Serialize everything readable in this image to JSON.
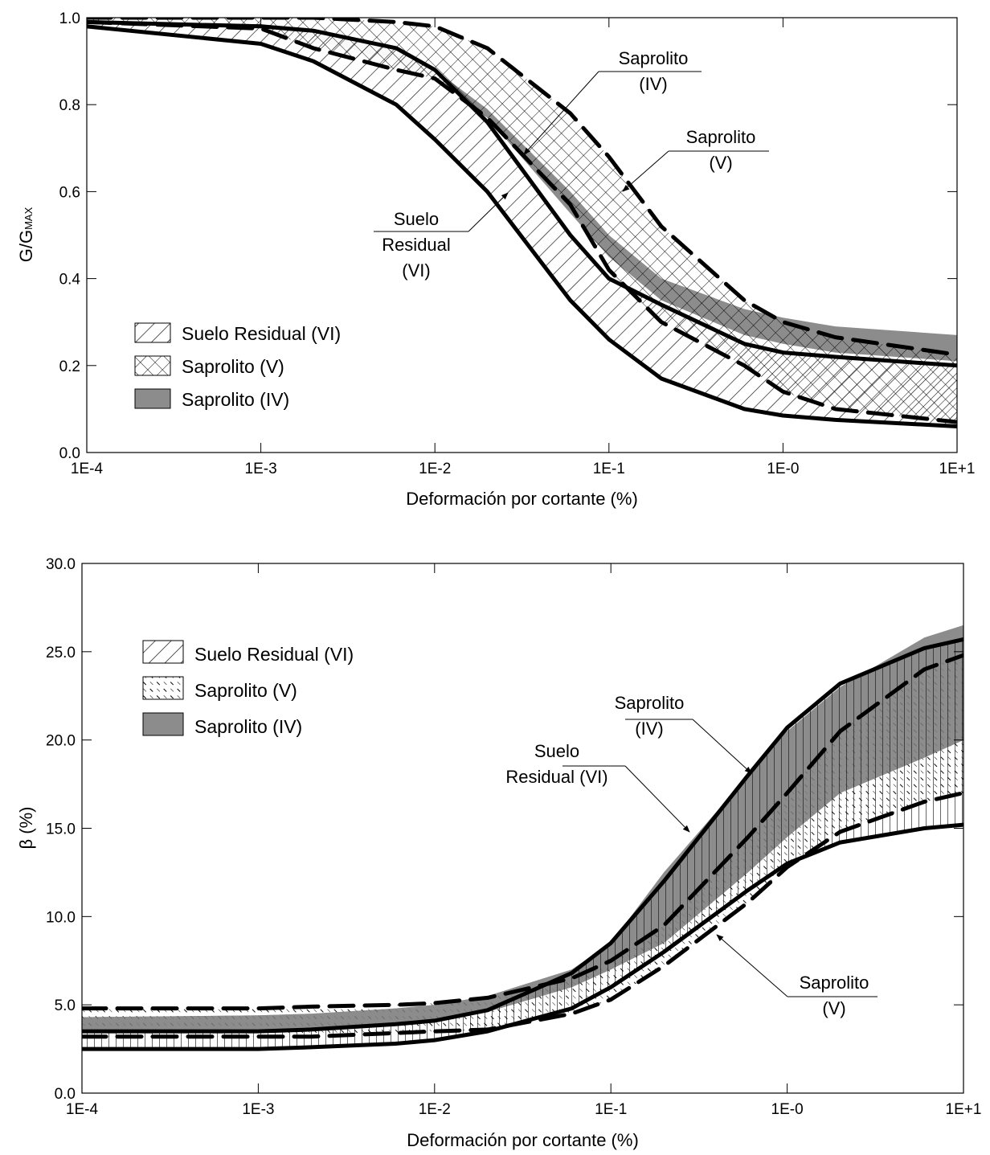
{
  "colors": {
    "frame": "#000000",
    "saprolito_iv_fill": "#8c8c8c",
    "saprolito_v_fill": "#ffffff",
    "suelo_residual_fill": "#ffffff",
    "text": "#000000"
  },
  "chart_data": [
    {
      "type": "area",
      "x_scale": "log",
      "xlim": [
        0.0001,
        10
      ],
      "ylim": [
        0,
        1.0
      ],
      "xlabel": "Deformación por cortante (%)",
      "ylabel": "G/G",
      "ylabel_subscript": "MAX",
      "x_tick_values": [
        0.0001,
        0.001,
        0.01,
        0.1,
        1,
        10
      ],
      "x_tick_labels": [
        "1E-4",
        "1E-3",
        "1E-2",
        "1E-1",
        "1E-0",
        "1E+1"
      ],
      "y_tick_values": [
        0,
        0.2,
        0.4,
        0.6,
        0.8,
        1.0
      ],
      "y_tick_labels": [
        "0.0",
        "0.2",
        "0.4",
        "0.6",
        "0.8",
        "1.0"
      ],
      "grid": false,
      "legend": {
        "placement": "bottom-left",
        "entries": [
          {
            "label": "Suelo Residual (VI)",
            "pattern": "hatch-diag"
          },
          {
            "label": "Saprolito (V)",
            "pattern": "hatch-cross"
          },
          {
            "label": "Saprolito (IV)",
            "pattern": "solid-gray"
          }
        ]
      },
      "annotations": [
        {
          "lines": [
            "Saprolito",
            "(IV)"
          ],
          "target": "saprolito_iv"
        },
        {
          "lines": [
            "Saprolito",
            "(V)"
          ],
          "target": "saprolito_v"
        },
        {
          "lines": [
            "Suelo",
            "Residual",
            "(VI)"
          ],
          "target": "suelo_residual"
        }
      ],
      "bands": [
        {
          "key": "saprolito_iv",
          "fill": "solid-gray",
          "upper": [
            [
              0.0001,
              0.99
            ],
            [
              0.001,
              0.985
            ],
            [
              0.002,
              0.97
            ],
            [
              0.006,
              0.93
            ],
            [
              0.01,
              0.88
            ],
            [
              0.02,
              0.79
            ],
            [
              0.06,
              0.6
            ],
            [
              0.1,
              0.5
            ],
            [
              0.2,
              0.4
            ],
            [
              0.6,
              0.33
            ],
            [
              1,
              0.31
            ],
            [
              2,
              0.29
            ],
            [
              10,
              0.27
            ]
          ],
          "lower": [
            [
              0.0001,
              0.985
            ],
            [
              0.001,
              0.97
            ],
            [
              0.002,
              0.95
            ],
            [
              0.006,
              0.9
            ],
            [
              0.01,
              0.85
            ],
            [
              0.02,
              0.77
            ],
            [
              0.06,
              0.55
            ],
            [
              0.1,
              0.45
            ],
            [
              0.2,
              0.35
            ],
            [
              0.6,
              0.27
            ],
            [
              1,
              0.25
            ],
            [
              2,
              0.23
            ],
            [
              10,
              0.21
            ]
          ]
        },
        {
          "key": "saprolito_v",
          "fill": "hatch-cross",
          "upper": [
            [
              0.0001,
              1.0
            ],
            [
              0.001,
              1.0
            ],
            [
              0.002,
              1.0
            ],
            [
              0.006,
              0.99
            ],
            [
              0.01,
              0.98
            ],
            [
              0.02,
              0.93
            ],
            [
              0.06,
              0.78
            ],
            [
              0.1,
              0.68
            ],
            [
              0.2,
              0.52
            ],
            [
              0.6,
              0.35
            ],
            [
              1,
              0.3
            ],
            [
              2,
              0.265
            ],
            [
              10,
              0.225
            ]
          ],
          "lower": [
            [
              0.0001,
              0.99
            ],
            [
              0.001,
              0.975
            ],
            [
              0.002,
              0.93
            ],
            [
              0.006,
              0.88
            ],
            [
              0.01,
              0.86
            ],
            [
              0.02,
              0.77
            ],
            [
              0.06,
              0.57
            ],
            [
              0.1,
              0.42
            ],
            [
              0.2,
              0.3
            ],
            [
              0.6,
              0.2
            ],
            [
              1,
              0.14
            ],
            [
              2,
              0.1
            ],
            [
              10,
              0.07
            ]
          ]
        },
        {
          "key": "suelo_residual",
          "fill": "hatch-diag",
          "upper": [
            [
              0.0001,
              0.99
            ],
            [
              0.001,
              0.98
            ],
            [
              0.002,
              0.97
            ],
            [
              0.006,
              0.93
            ],
            [
              0.01,
              0.88
            ],
            [
              0.02,
              0.76
            ],
            [
              0.06,
              0.5
            ],
            [
              0.1,
              0.4
            ],
            [
              0.2,
              0.34
            ],
            [
              0.6,
              0.25
            ],
            [
              1,
              0.23
            ],
            [
              2,
              0.22
            ],
            [
              10,
              0.2
            ]
          ],
          "lower": [
            [
              0.0001,
              0.98
            ],
            [
              0.001,
              0.94
            ],
            [
              0.002,
              0.9
            ],
            [
              0.006,
              0.8
            ],
            [
              0.01,
              0.72
            ],
            [
              0.02,
              0.6
            ],
            [
              0.06,
              0.35
            ],
            [
              0.1,
              0.26
            ],
            [
              0.2,
              0.17
            ],
            [
              0.6,
              0.1
            ],
            [
              1,
              0.085
            ],
            [
              2,
              0.075
            ],
            [
              10,
              0.06
            ]
          ]
        }
      ]
    },
    {
      "type": "area",
      "x_scale": "log",
      "xlim": [
        0.0001,
        10
      ],
      "ylim": [
        0,
        30
      ],
      "xlabel": "Deformación por cortante (%)",
      "ylabel": "β (%)",
      "x_tick_values": [
        0.0001,
        0.001,
        0.01,
        0.1,
        1,
        10
      ],
      "x_tick_labels": [
        "1E-4",
        "1E-3",
        "1E-2",
        "1E-1",
        "1E-0",
        "1E+1"
      ],
      "y_tick_values": [
        0,
        5,
        10,
        15,
        20,
        25,
        30
      ],
      "y_tick_labels": [
        "0.0",
        "5.0",
        "10.0",
        "15.0",
        "20.0",
        "25.0",
        "30.0"
      ],
      "grid": false,
      "legend": {
        "placement": "top-left",
        "entries": [
          {
            "label": "Suelo Residual (VI)",
            "pattern": "hatch-diag"
          },
          {
            "label": "Saprolito (V)",
            "pattern": "hatch-dash"
          },
          {
            "label": "Saprolito (IV)",
            "pattern": "solid-gray"
          }
        ]
      },
      "annotations": [
        {
          "lines": [
            "Saprolito",
            "(IV)"
          ],
          "target": "saprolito_iv"
        },
        {
          "lines": [
            "Suelo",
            "Residual (VI)"
          ],
          "target": "suelo_residual"
        },
        {
          "lines": [
            "Saprolito",
            "(V)"
          ],
          "target": "saprolito_v"
        }
      ],
      "bands": [
        {
          "key": "saprolito_iv",
          "fill": "solid-gray",
          "upper": [
            [
              0.0001,
              4.3
            ],
            [
              0.001,
              4.4
            ],
            [
              0.002,
              4.5
            ],
            [
              0.006,
              4.8
            ],
            [
              0.01,
              5.0
            ],
            [
              0.02,
              5.5
            ],
            [
              0.06,
              7.0
            ],
            [
              0.1,
              8.5
            ],
            [
              0.2,
              12.5
            ],
            [
              0.6,
              18.0
            ],
            [
              1,
              20.5
            ],
            [
              2,
              23.0
            ],
            [
              6,
              25.8
            ],
            [
              10,
              26.5
            ]
          ],
          "lower": [
            [
              0.0001,
              3.4
            ],
            [
              0.001,
              3.5
            ],
            [
              0.002,
              3.6
            ],
            [
              0.006,
              3.8
            ],
            [
              0.01,
              4.0
            ],
            [
              0.02,
              4.6
            ],
            [
              0.06,
              6.0
            ],
            [
              0.1,
              7.0
            ],
            [
              0.2,
              8.5
            ],
            [
              0.6,
              12.5
            ],
            [
              1,
              14.5
            ],
            [
              2,
              17.0
            ],
            [
              6,
              19.0
            ],
            [
              10,
              20.0
            ]
          ]
        },
        {
          "key": "saprolito_v",
          "fill": "hatch-dash",
          "upper": [
            [
              0.0001,
              4.8
            ],
            [
              0.001,
              4.8
            ],
            [
              0.002,
              4.9
            ],
            [
              0.006,
              5.0
            ],
            [
              0.01,
              5.1
            ],
            [
              0.02,
              5.4
            ],
            [
              0.06,
              6.5
            ],
            [
              0.1,
              7.5
            ],
            [
              0.2,
              9.5
            ],
            [
              0.6,
              14.5
            ],
            [
              1,
              17.0
            ],
            [
              2,
              20.5
            ],
            [
              6,
              24.0
            ],
            [
              10,
              24.8
            ]
          ],
          "lower": [
            [
              0.0001,
              3.2
            ],
            [
              0.001,
              3.2
            ],
            [
              0.002,
              3.2
            ],
            [
              0.006,
              3.4
            ],
            [
              0.01,
              3.5
            ],
            [
              0.02,
              3.6
            ],
            [
              0.06,
              4.5
            ],
            [
              0.1,
              5.3
            ],
            [
              0.2,
              7.2
            ],
            [
              0.6,
              10.8
            ],
            [
              1,
              12.8
            ],
            [
              2,
              14.8
            ],
            [
              6,
              16.5
            ],
            [
              10,
              17.0
            ]
          ]
        },
        {
          "key": "suelo_residual",
          "fill": "hatch-diag",
          "upper": [
            [
              0.0001,
              3.5
            ],
            [
              0.001,
              3.5
            ],
            [
              0.002,
              3.6
            ],
            [
              0.006,
              3.9
            ],
            [
              0.01,
              4.1
            ],
            [
              0.02,
              4.7
            ],
            [
              0.06,
              6.8
            ],
            [
              0.1,
              8.5
            ],
            [
              0.2,
              12.0
            ],
            [
              0.6,
              18.0
            ],
            [
              1,
              20.7
            ],
            [
              2,
              23.2
            ],
            [
              6,
              25.2
            ],
            [
              10,
              25.7
            ]
          ],
          "lower": [
            [
              0.0001,
              2.5
            ],
            [
              0.001,
              2.5
            ],
            [
              0.002,
              2.6
            ],
            [
              0.006,
              2.8
            ],
            [
              0.01,
              3.0
            ],
            [
              0.02,
              3.5
            ],
            [
              0.06,
              4.8
            ],
            [
              0.1,
              6.0
            ],
            [
              0.2,
              8.0
            ],
            [
              0.6,
              11.5
            ],
            [
              1,
              13.0
            ],
            [
              2,
              14.2
            ],
            [
              6,
              15.0
            ],
            [
              10,
              15.2
            ]
          ]
        }
      ]
    }
  ]
}
